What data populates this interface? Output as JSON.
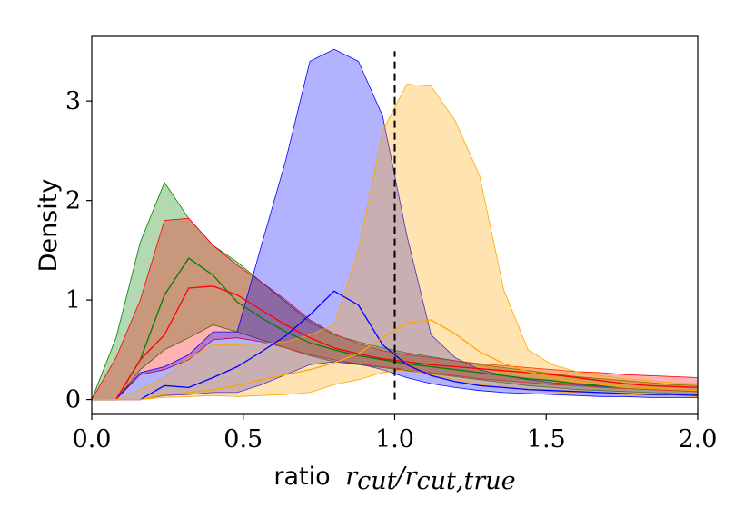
{
  "chart_data": {
    "type": "area",
    "xlabel": "ratio",
    "xlabel_math": "r_cut/r_cut,true",
    "ylabel": "Density",
    "xlim": [
      0.0,
      2.0
    ],
    "ylim": [
      -0.15,
      3.65
    ],
    "xticks": [
      "0.0",
      "0.5",
      "1.0",
      "1.5",
      "2.0"
    ],
    "yticks": [
      "0",
      "1",
      "2",
      "3"
    ],
    "reference_line": {
      "x": 1.0,
      "style": "dashed",
      "color": "#000000",
      "y_range": [
        0,
        3.5
      ]
    },
    "x": [
      0.0,
      0.08,
      0.16,
      0.24,
      0.32,
      0.4,
      0.48,
      0.56,
      0.64,
      0.72,
      0.8,
      0.88,
      0.96,
      1.04,
      1.12,
      1.2,
      1.28,
      1.36,
      1.44,
      1.52,
      1.6,
      1.68,
      1.76,
      1.84,
      1.92,
      2.0
    ],
    "series": [
      {
        "color": "#008000",
        "mean": [
          0,
          0,
          0.4,
          1.05,
          1.42,
          1.25,
          0.98,
          0.82,
          0.68,
          0.57,
          0.5,
          0.44,
          0.4,
          0.36,
          0.33,
          0.3,
          0.27,
          0.24,
          0.21,
          0.19,
          0.16,
          0.14,
          0.12,
          0.11,
          0.1,
          0.09
        ],
        "lower": [
          0,
          0,
          0.3,
          0.5,
          0.62,
          0.75,
          0.68,
          0.6,
          0.52,
          0.44,
          0.38,
          0.35,
          0.32,
          0.29,
          0.26,
          0.23,
          0.2,
          0.17,
          0.14,
          0.12,
          0.1,
          0.09,
          0.08,
          0.07,
          0.06,
          0.05
        ],
        "upper": [
          0,
          0.62,
          1.58,
          2.18,
          1.82,
          1.55,
          1.38,
          1.18,
          0.98,
          0.78,
          0.65,
          0.58,
          0.52,
          0.47,
          0.43,
          0.39,
          0.35,
          0.32,
          0.29,
          0.26,
          0.23,
          0.21,
          0.19,
          0.17,
          0.15,
          0.14
        ]
      },
      {
        "color": "#ff0000",
        "mean": [
          0,
          0,
          0.4,
          0.65,
          1.12,
          1.14,
          1.05,
          0.9,
          0.75,
          0.62,
          0.52,
          0.46,
          0.41,
          0.38,
          0.35,
          0.33,
          0.31,
          0.29,
          0.27,
          0.25,
          0.22,
          0.19,
          0.16,
          0.14,
          0.13,
          0.12
        ],
        "lower": [
          0,
          0,
          0.25,
          0.3,
          0.4,
          0.6,
          0.62,
          0.58,
          0.52,
          0.45,
          0.4,
          0.36,
          0.33,
          0.3,
          0.27,
          0.24,
          0.21,
          0.19,
          0.17,
          0.15,
          0.14,
          0.12,
          0.11,
          0.1,
          0.09,
          0.08
        ],
        "upper": [
          0,
          0.42,
          1.0,
          1.8,
          1.82,
          1.55,
          1.35,
          1.18,
          1.0,
          0.8,
          0.66,
          0.56,
          0.49,
          0.45,
          0.42,
          0.39,
          0.36,
          0.34,
          0.32,
          0.3,
          0.28,
          0.27,
          0.25,
          0.24,
          0.23,
          0.22
        ]
      },
      {
        "color": "#0000ff",
        "mean": [
          0,
          0,
          0,
          0.14,
          0.12,
          0.22,
          0.33,
          0.48,
          0.64,
          0.85,
          1.09,
          0.95,
          0.55,
          0.35,
          0.24,
          0.18,
          0.14,
          0.12,
          0.1,
          0.09,
          0.08,
          0.07,
          0.06,
          0.05,
          0.05,
          0.04
        ],
        "lower": [
          0,
          0,
          0,
          0.04,
          0.05,
          0.07,
          0.07,
          0.15,
          0.25,
          0.35,
          0.38,
          0.36,
          0.3,
          0.22,
          0.16,
          0.12,
          0.09,
          0.07,
          0.06,
          0.05,
          0.04,
          0.03,
          0.03,
          0.02,
          0.02,
          0.02
        ],
        "upper": [
          0,
          0,
          0.27,
          0.33,
          0.45,
          0.68,
          0.68,
          1.55,
          2.4,
          3.4,
          3.52,
          3.4,
          2.85,
          1.65,
          0.65,
          0.42,
          0.3,
          0.24,
          0.2,
          0.17,
          0.15,
          0.13,
          0.12,
          0.11,
          0.1,
          0.09
        ]
      },
      {
        "color": "#ffa500",
        "mean": [
          0,
          0,
          0,
          0.05,
          0.07,
          0.1,
          0.14,
          0.2,
          0.25,
          0.3,
          0.37,
          0.46,
          0.62,
          0.77,
          0.8,
          0.66,
          0.48,
          0.36,
          0.28,
          0.22,
          0.18,
          0.15,
          0.12,
          0.11,
          0.1,
          0.09
        ],
        "lower": [
          0,
          0,
          0,
          0.02,
          0.03,
          0.04,
          0.03,
          0.04,
          0.05,
          0.07,
          0.15,
          0.2,
          0.27,
          0.3,
          0.25,
          0.2,
          0.15,
          0.12,
          0.1,
          0.08,
          0.07,
          0.06,
          0.05,
          0.04,
          0.04,
          0.03
        ],
        "upper": [
          0,
          0,
          0.1,
          0.22,
          0.42,
          0.55,
          0.55,
          0.56,
          0.58,
          0.65,
          0.75,
          1.5,
          2.7,
          3.17,
          3.15,
          2.8,
          2.25,
          1.1,
          0.5,
          0.35,
          0.28,
          0.24,
          0.21,
          0.19,
          0.17,
          0.16
        ]
      }
    ]
  }
}
